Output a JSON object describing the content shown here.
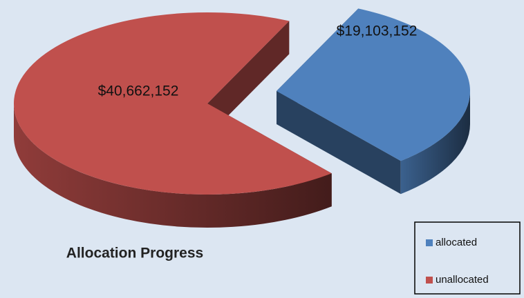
{
  "chart_data": {
    "type": "pie",
    "title": "Allocation Progress",
    "categories": [
      "allocated",
      "unallocated"
    ],
    "values": [
      19103152,
      40662152
    ],
    "value_labels": [
      "$19,103,152",
      "$40,662,152"
    ],
    "colors": [
      "#4f81bd",
      "#c0504d"
    ],
    "legend": "bottom-right"
  }
}
